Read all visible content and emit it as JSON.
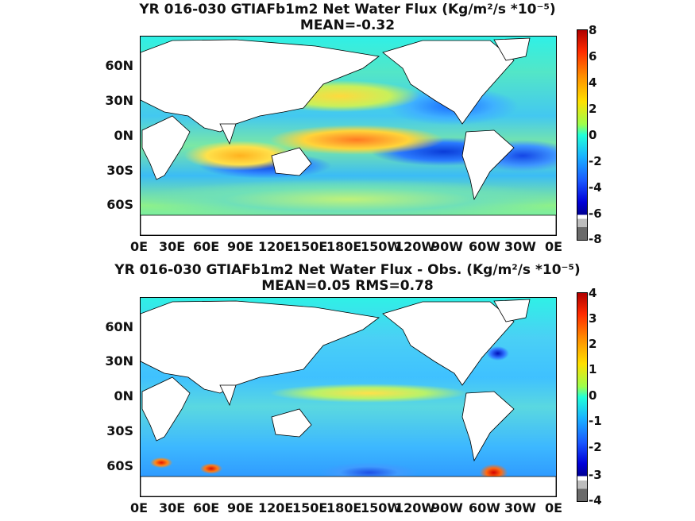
{
  "top_panel": {
    "title": "YR 016-030 GTIAFb1m2  Net Water Flux (Kg/m²/s *10⁻⁵)",
    "subtitle": "MEAN=-0.32",
    "colorbar_ticks": [
      "8",
      "6",
      "4",
      "2",
      "0",
      "-2",
      "-4",
      "-6",
      "-8"
    ],
    "colorbar_range": [
      -8,
      8
    ]
  },
  "bottom_panel": {
    "title": "YR 016-030 GTIAFb1m2  Net Water Flux - Obs. (Kg/m²/s *10⁻⁵)",
    "subtitle": "MEAN=0.05 RMS=0.78",
    "colorbar_ticks": [
      "4",
      "3",
      "2",
      "1",
      "0",
      "-1",
      "-2",
      "-3",
      "-4"
    ],
    "colorbar_range": [
      -4,
      4
    ]
  },
  "lat_labels": [
    "60N",
    "30N",
    "0N",
    "30S",
    "60S"
  ],
  "lon_labels": [
    "0E",
    "30E",
    "60E",
    "90E",
    "120E",
    "150E",
    "180E",
    "150W",
    "120W",
    "90W",
    "60W",
    "30W",
    "0E"
  ],
  "colors": {
    "high": "#b00000",
    "mid_high": "#ffe000",
    "zero": "#22ffd8",
    "low": "#0000d8",
    "land": "#ffffff"
  }
}
